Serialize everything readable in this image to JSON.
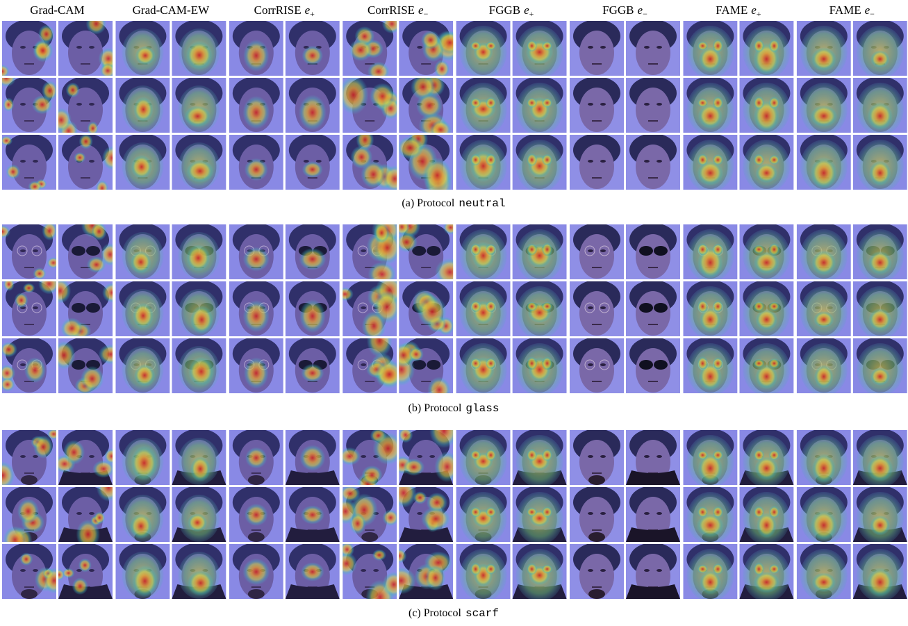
{
  "columns": [
    {
      "label": "Grad-CAM"
    },
    {
      "label": "Grad-CAM-EW"
    },
    {
      "label": "CorrRISE",
      "math": "e",
      "sub": "+"
    },
    {
      "label": "CorrRISE",
      "math": "e",
      "sub": "−"
    },
    {
      "label": "FGGB",
      "math": "e",
      "sub": "+"
    },
    {
      "label": "FGGB",
      "math": "e",
      "sub": "−"
    },
    {
      "label": "FAME",
      "math": "e",
      "sub": "+"
    },
    {
      "label": "FAME",
      "math": "e",
      "sub": "−"
    }
  ],
  "panels": [
    {
      "caption": "(a) Protocol",
      "protocol": "neutral"
    },
    {
      "caption": "(b) Protocol",
      "protocol": "glass"
    },
    {
      "caption": "(c) Protocol",
      "protocol": "scarf"
    }
  ]
}
